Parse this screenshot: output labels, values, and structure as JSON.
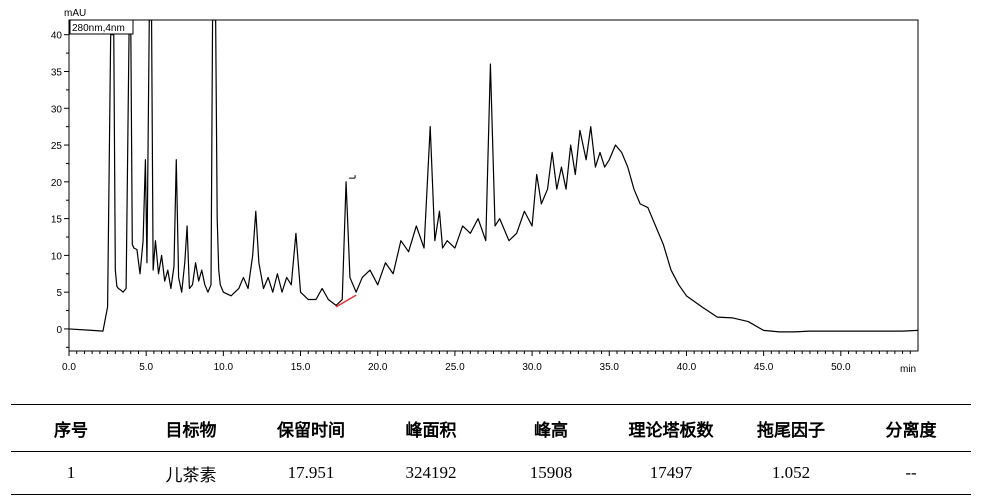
{
  "chart_data": {
    "type": "line",
    "ylabel": "mAU",
    "xlabel": "min",
    "legend": "280nm,4nm",
    "xlim": [
      0,
      55
    ],
    "ylim": [
      -3,
      42
    ],
    "x_ticks": [
      "0.0",
      "5.0",
      "10.0",
      "15.0",
      "20.0",
      "25.0",
      "30.0",
      "35.0",
      "40.0",
      "45.0",
      "50.0"
    ],
    "y_ticks": [
      "0",
      "5",
      "10",
      "15",
      "20",
      "25",
      "30",
      "35",
      "40"
    ],
    "peak_marker": {
      "x": 17.95,
      "label": "1"
    },
    "baseline_segment": {
      "x": [
        17.3,
        18.6
      ],
      "y": [
        3.0,
        4.6
      ],
      "color": "#e03030"
    },
    "series": [
      {
        "color": "#000000",
        "x": [
          0,
          1.5,
          2.2,
          2.5,
          2.7,
          2.9,
          3.0,
          3.1,
          3.2,
          3.35,
          3.5,
          3.7,
          3.9,
          4.0,
          4.1,
          4.2,
          4.4,
          4.6,
          4.8,
          4.95,
          5.05,
          5.2,
          5.35,
          5.45,
          5.6,
          5.8,
          6.0,
          6.2,
          6.4,
          6.6,
          6.8,
          6.95,
          7.1,
          7.3,
          7.5,
          7.65,
          7.8,
          8.0,
          8.2,
          8.4,
          8.6,
          8.8,
          9.0,
          9.2,
          9.3,
          9.4,
          9.5,
          9.6,
          9.7,
          9.8,
          10.0,
          10.5,
          11.0,
          11.3,
          11.6,
          11.9,
          12.1,
          12.3,
          12.6,
          12.9,
          13.2,
          13.5,
          13.8,
          14.1,
          14.4,
          14.7,
          15.0,
          15.5,
          16.0,
          16.4,
          16.8,
          17.3,
          17.7,
          17.95,
          18.2,
          18.6,
          19.0,
          19.5,
          20.0,
          20.5,
          21.0,
          21.5,
          22.0,
          22.5,
          23.0,
          23.4,
          23.7,
          24.0,
          24.2,
          24.5,
          25.0,
          25.5,
          26.0,
          26.5,
          27.0,
          27.3,
          27.6,
          27.9,
          28.5,
          29.0,
          29.5,
          30.0,
          30.3,
          30.6,
          31.0,
          31.3,
          31.6,
          31.9,
          32.2,
          32.5,
          32.8,
          33.1,
          33.5,
          33.8,
          34.1,
          34.4,
          34.7,
          35.0,
          35.4,
          35.8,
          36.2,
          36.6,
          37.0,
          37.5,
          38.0,
          38.5,
          39.0,
          39.5,
          40.0,
          41.0,
          42.0,
          43.0,
          44.0,
          45.0,
          46.0,
          47.0,
          48.0,
          50.0,
          52.0,
          54.0,
          55.0
        ],
        "y": [
          0,
          -0.2,
          -0.3,
          3.0,
          40.0,
          40.0,
          8.0,
          5.8,
          5.5,
          5.3,
          5.0,
          5.5,
          42.0,
          42.0,
          11.5,
          11.0,
          10.8,
          7.5,
          12.0,
          23.0,
          9.0,
          42.0,
          42.0,
          8.0,
          12.0,
          7.5,
          10.0,
          6.5,
          8.0,
          5.5,
          8.5,
          23.0,
          7.0,
          5.0,
          9.0,
          14.0,
          5.5,
          6.0,
          9.0,
          6.5,
          8.0,
          6.0,
          5.0,
          6.0,
          42.0,
          42.0,
          42.0,
          15.0,
          8.0,
          6.0,
          5.0,
          4.5,
          5.5,
          7.0,
          5.5,
          10.0,
          16.0,
          9.0,
          5.5,
          7.0,
          5.0,
          7.5,
          5.0,
          7.0,
          6.0,
          13.0,
          5.0,
          4.0,
          4.0,
          5.5,
          4.0,
          3.2,
          4.0,
          20.0,
          7.0,
          5.0,
          7.0,
          8.0,
          6.0,
          9.0,
          7.5,
          12.0,
          10.5,
          14.0,
          11.0,
          27.5,
          12.0,
          16.0,
          11.0,
          12.0,
          11.0,
          14.0,
          13.0,
          15.0,
          12.0,
          36.0,
          14.0,
          15.0,
          12.0,
          13.0,
          16.0,
          14.0,
          21.0,
          17.0,
          19.0,
          24.0,
          19.0,
          22.0,
          19.0,
          25.0,
          21.0,
          27.0,
          23.0,
          27.5,
          22.0,
          24.0,
          22.0,
          23.0,
          25.0,
          24.0,
          22.0,
          19.0,
          17.0,
          16.5,
          14.0,
          11.5,
          8.0,
          6.0,
          4.5,
          3.0,
          1.6,
          1.5,
          1.0,
          -0.2,
          -0.4,
          -0.4,
          -0.3,
          -0.3,
          -0.3,
          -0.3,
          -0.2
        ]
      }
    ]
  },
  "table": {
    "headers": [
      "序号",
      "目标物",
      "保留时间",
      "峰面积",
      "峰高",
      "理论塔板数",
      "拖尾因子",
      "分离度"
    ],
    "rows": [
      [
        "1",
        "儿茶素",
        "17.951",
        "324192",
        "15908",
        "17497",
        "1.052",
        "--"
      ]
    ]
  }
}
